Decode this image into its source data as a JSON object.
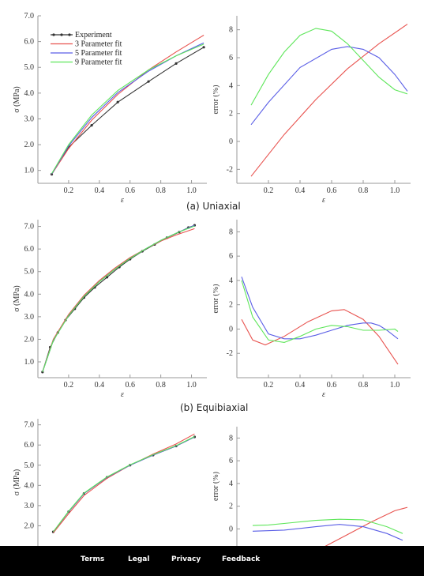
{
  "captions": [
    "(a) Uniaxial",
    "(b) Equibiaxial"
  ],
  "footer": {
    "links": [
      "Terms",
      "Legal",
      "Privacy",
      "Feedback"
    ]
  },
  "colors": {
    "experiment": "#333333",
    "p3": "#e8534f",
    "p5": "#5a5ee6",
    "p9": "#5ee65a",
    "axis": "#999999"
  },
  "legend": [
    "Experiment",
    "3 Parameter fit",
    "5 Parameter fit",
    "9 Parameter fit"
  ],
  "chart_data": [
    {
      "id": "uniaxial-stress",
      "type": "line",
      "xlabel": "ε",
      "ylabel": "σ (MPa)",
      "xlim": [
        0.0,
        1.1
      ],
      "ylim": [
        0.5,
        7.0
      ],
      "xticks": [
        "0.2",
        "0.4",
        "0.6",
        "0.8",
        "1.0"
      ],
      "xtick_values": [
        0.2,
        0.4,
        0.6,
        0.8,
        1.0
      ],
      "yticks": [
        "1.0",
        "2.0",
        "3.0",
        "4.0",
        "5.0",
        "6.0",
        "7.0"
      ],
      "ytick_values": [
        1,
        2,
        3,
        4,
        5,
        6,
        7
      ],
      "legend_placement": "top-left",
      "series": [
        {
          "name": "Experiment",
          "markers": true,
          "x": [
            0.09,
            0.2,
            0.35,
            0.52,
            0.72,
            0.9,
            1.08
          ],
          "y": [
            0.85,
            1.9,
            2.75,
            3.65,
            4.45,
            5.15,
            5.78
          ]
        },
        {
          "name": "3 Parameter fit",
          "x": [
            0.09,
            0.2,
            0.35,
            0.52,
            0.72,
            0.9,
            1.08
          ],
          "y": [
            0.85,
            1.85,
            2.95,
            3.95,
            4.9,
            5.6,
            6.25
          ]
        },
        {
          "name": "5 Parameter fit",
          "x": [
            0.09,
            0.2,
            0.35,
            0.52,
            0.72,
            0.9,
            1.08
          ],
          "y": [
            0.86,
            1.95,
            3.05,
            4.02,
            4.85,
            5.45,
            5.95
          ]
        },
        {
          "name": "9 Parameter fit",
          "x": [
            0.09,
            0.2,
            0.35,
            0.52,
            0.72,
            0.9,
            1.08
          ],
          "y": [
            0.88,
            2.0,
            3.15,
            4.1,
            4.9,
            5.45,
            5.9
          ]
        }
      ]
    },
    {
      "id": "uniaxial-error",
      "type": "line",
      "xlabel": "ε",
      "ylabel": "error (%)",
      "xlim": [
        0.0,
        1.1
      ],
      "ylim": [
        -3,
        9
      ],
      "xticks": [
        "0.2",
        "0.4",
        "0.6",
        "0.8",
        "1.0"
      ],
      "xtick_values": [
        0.2,
        0.4,
        0.6,
        0.8,
        1.0
      ],
      "yticks": [
        "-2",
        "0",
        "2",
        "4",
        "6",
        "8"
      ],
      "ytick_values": [
        -2,
        0,
        2,
        4,
        6,
        8
      ],
      "series": [
        {
          "name": "3 Parameter fit",
          "x": [
            0.09,
            0.3,
            0.5,
            0.7,
            0.9,
            1.08
          ],
          "y": [
            -2.5,
            0.5,
            3.0,
            5.2,
            7.0,
            8.4
          ]
        },
        {
          "name": "5 Parameter fit",
          "x": [
            0.09,
            0.2,
            0.4,
            0.6,
            0.7,
            0.8,
            0.9,
            1.0,
            1.08
          ],
          "y": [
            1.2,
            2.8,
            5.3,
            6.6,
            6.8,
            6.6,
            6.0,
            4.8,
            3.6
          ]
        },
        {
          "name": "9 Parameter fit",
          "x": [
            0.09,
            0.2,
            0.3,
            0.4,
            0.5,
            0.6,
            0.7,
            0.8,
            0.9,
            1.0,
            1.08
          ],
          "y": [
            2.6,
            4.8,
            6.4,
            7.6,
            8.1,
            7.9,
            7.0,
            5.8,
            4.6,
            3.7,
            3.4
          ]
        }
      ]
    },
    {
      "id": "equibiaxial-stress",
      "type": "line",
      "xlabel": "ε",
      "ylabel": "σ (MPa)",
      "xlim": [
        0.0,
        1.1
      ],
      "ylim": [
        0.3,
        7.3
      ],
      "xticks": [
        "0.2",
        "0.4",
        "0.6",
        "0.8",
        "1.0"
      ],
      "xtick_values": [
        0.2,
        0.4,
        0.6,
        0.8,
        1.0
      ],
      "yticks": [
        "1.0",
        "2.0",
        "3.0",
        "4.0",
        "5.0",
        "6.0",
        "7.0"
      ],
      "ytick_values": [
        1,
        2,
        3,
        4,
        5,
        6,
        7
      ],
      "series": [
        {
          "name": "Experiment",
          "markers": true,
          "x": [
            0.03,
            0.08,
            0.13,
            0.18,
            0.24,
            0.3,
            0.37,
            0.45,
            0.53,
            0.6,
            0.68,
            0.76,
            0.84,
            0.92,
            0.98,
            1.02
          ],
          "y": [
            0.55,
            1.65,
            2.3,
            2.85,
            3.35,
            3.85,
            4.3,
            4.75,
            5.2,
            5.55,
            5.9,
            6.2,
            6.5,
            6.75,
            6.95,
            7.05
          ]
        },
        {
          "name": "3 Parameter fit",
          "x": [
            0.03,
            0.1,
            0.2,
            0.3,
            0.4,
            0.5,
            0.6,
            0.7,
            0.8,
            0.9,
            1.02
          ],
          "y": [
            0.55,
            2.0,
            3.1,
            3.95,
            4.6,
            5.15,
            5.62,
            6.0,
            6.35,
            6.62,
            6.9
          ]
        },
        {
          "name": "5 Parameter fit",
          "x": [
            0.03,
            0.1,
            0.2,
            0.3,
            0.4,
            0.5,
            0.6,
            0.7,
            0.8,
            0.9,
            1.02
          ],
          "y": [
            0.55,
            1.95,
            3.05,
            3.9,
            4.55,
            5.1,
            5.58,
            6.0,
            6.38,
            6.7,
            7.05
          ]
        },
        {
          "name": "9 Parameter fit",
          "x": [
            0.03,
            0.1,
            0.2,
            0.3,
            0.4,
            0.5,
            0.6,
            0.7,
            0.8,
            0.9,
            1.02
          ],
          "y": [
            0.55,
            1.95,
            3.05,
            3.9,
            4.55,
            5.1,
            5.58,
            6.0,
            6.38,
            6.7,
            7.02
          ]
        }
      ]
    },
    {
      "id": "equibiaxial-error",
      "type": "line",
      "xlabel": "ε",
      "ylabel": "error (%)",
      "xlim": [
        0.0,
        1.1
      ],
      "ylim": [
        -4,
        9
      ],
      "xticks": [
        "0.2",
        "0.4",
        "0.6",
        "0.8",
        "1.0"
      ],
      "xtick_values": [
        0.2,
        0.4,
        0.6,
        0.8,
        1.0
      ],
      "yticks": [
        "-2",
        "0",
        "2",
        "4",
        "6",
        "8"
      ],
      "ytick_values": [
        -2,
        0,
        2,
        4,
        6,
        8
      ],
      "series": [
        {
          "name": "3 Parameter fit",
          "x": [
            0.03,
            0.1,
            0.18,
            0.3,
            0.45,
            0.6,
            0.68,
            0.8,
            0.9,
            1.02
          ],
          "y": [
            0.8,
            -0.9,
            -1.3,
            -0.6,
            0.6,
            1.5,
            1.6,
            0.8,
            -0.6,
            -2.9
          ]
        },
        {
          "name": "5 Parameter fit",
          "x": [
            0.03,
            0.1,
            0.2,
            0.3,
            0.4,
            0.5,
            0.6,
            0.7,
            0.8,
            0.85,
            0.9,
            0.95,
            1.02
          ],
          "y": [
            4.3,
            1.8,
            -0.4,
            -0.8,
            -0.8,
            -0.5,
            -0.1,
            0.3,
            0.5,
            0.5,
            0.3,
            -0.1,
            -0.8
          ]
        },
        {
          "name": "9 Parameter fit",
          "x": [
            0.03,
            0.1,
            0.2,
            0.3,
            0.4,
            0.5,
            0.6,
            0.7,
            0.8,
            0.9,
            1.0,
            1.02
          ],
          "y": [
            4.0,
            1.0,
            -0.9,
            -1.1,
            -0.6,
            0.0,
            0.3,
            0.2,
            -0.1,
            -0.1,
            0.0,
            -0.2
          ]
        }
      ]
    },
    {
      "id": "third-stress",
      "type": "line",
      "xlabel": "",
      "ylabel": "σ (MPa)",
      "xlim": [
        0.0,
        1.1
      ],
      "ylim": [
        1.0,
        7.3
      ],
      "xticks": [],
      "xtick_values": [],
      "yticks": [
        "2.0",
        "3.0",
        "4.0",
        "5.0",
        "6.0",
        "7.0"
      ],
      "ytick_values": [
        2,
        3,
        4,
        5,
        6,
        7
      ],
      "series": [
        {
          "name": "Experiment",
          "markers": true,
          "x": [
            0.1,
            0.2,
            0.3,
            0.45,
            0.6,
            0.75,
            0.9,
            1.02
          ],
          "y": [
            1.7,
            2.7,
            3.6,
            4.4,
            5.0,
            5.5,
            5.95,
            6.4
          ]
        },
        {
          "name": "3 Parameter fit",
          "x": [
            0.1,
            0.2,
            0.3,
            0.45,
            0.6,
            0.75,
            0.9,
            1.02
          ],
          "y": [
            1.65,
            2.6,
            3.5,
            4.35,
            5.0,
            5.55,
            6.05,
            6.55
          ]
        },
        {
          "name": "5 Parameter fit",
          "x": [
            0.1,
            0.2,
            0.3,
            0.45,
            0.6,
            0.75,
            0.9,
            1.02
          ],
          "y": [
            1.7,
            2.7,
            3.6,
            4.4,
            5.0,
            5.5,
            5.95,
            6.4
          ]
        },
        {
          "name": "9 Parameter fit",
          "x": [
            0.1,
            0.2,
            0.3,
            0.45,
            0.6,
            0.75,
            0.9,
            1.02
          ],
          "y": [
            1.7,
            2.72,
            3.62,
            4.42,
            5.02,
            5.52,
            5.97,
            6.42
          ]
        }
      ]
    },
    {
      "id": "third-error",
      "type": "line",
      "xlabel": "",
      "ylabel": "error (%)",
      "xlim": [
        0.0,
        1.1
      ],
      "ylim": [
        -1.5,
        9
      ],
      "xticks": [],
      "xtick_values": [],
      "yticks": [
        "0",
        "2",
        "4",
        "6",
        "8"
      ],
      "ytick_values": [
        0,
        2,
        4,
        6,
        8
      ],
      "series": [
        {
          "name": "3 Parameter fit",
          "x": [
            0.55,
            0.7,
            0.85,
            1.0,
            1.08
          ],
          "y": [
            -1.6,
            -0.5,
            0.6,
            1.6,
            1.9
          ]
        },
        {
          "name": "5 Parameter fit",
          "x": [
            0.1,
            0.3,
            0.5,
            0.65,
            0.8,
            0.95,
            1.05
          ],
          "y": [
            -0.2,
            -0.1,
            0.2,
            0.4,
            0.2,
            -0.4,
            -1.0
          ]
        },
        {
          "name": "9 Parameter fit",
          "x": [
            0.1,
            0.2,
            0.35,
            0.5,
            0.65,
            0.8,
            0.95,
            1.05
          ],
          "y": [
            0.3,
            0.35,
            0.55,
            0.75,
            0.85,
            0.8,
            0.2,
            -0.4
          ]
        }
      ]
    }
  ]
}
